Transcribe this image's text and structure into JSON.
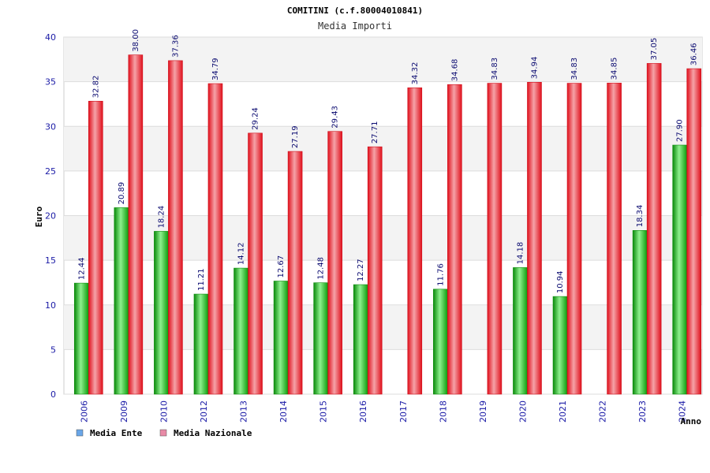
{
  "chart_data": {
    "type": "bar",
    "title": "COMITINI (c.f.80004010841)",
    "subtitle": "Media Importi",
    "xlabel": "Anno",
    "ylabel": "Euro",
    "ylim": [
      0,
      40
    ],
    "yticks": [
      "0",
      "5",
      "10",
      "15",
      "20",
      "25",
      "30",
      "35",
      "40"
    ],
    "grid": true,
    "legend_position": "bottom-left",
    "categories": [
      "2006",
      "2009",
      "2010",
      "2012",
      "2013",
      "2014",
      "2015",
      "2016",
      "2017",
      "2018",
      "2019",
      "2020",
      "2021",
      "2022",
      "2023",
      "2024"
    ],
    "series": [
      {
        "name": "Media Ente",
        "color": "#11b011",
        "legend_color": "#6aa6e8",
        "values": [
          12.44,
          20.89,
          18.24,
          11.21,
          14.12,
          12.67,
          12.48,
          12.27,
          null,
          11.76,
          null,
          14.18,
          10.94,
          null,
          18.34,
          27.9
        ],
        "labels": [
          "12.44",
          "20.89",
          "18.24",
          "11.21",
          "14.12",
          "12.67",
          "12.48",
          "12.27",
          "",
          "11.76",
          "",
          "14.18",
          "10.94",
          "",
          "18.34",
          "27.90"
        ]
      },
      {
        "name": "Media Nazionale",
        "color": "#e8101c",
        "legend_color": "#e88aa6",
        "values": [
          32.82,
          38.0,
          37.36,
          34.79,
          29.24,
          27.19,
          29.43,
          27.71,
          34.32,
          34.68,
          34.83,
          34.94,
          34.83,
          34.85,
          37.05,
          36.46
        ],
        "labels": [
          "32.82",
          "38.00",
          "37.36",
          "34.79",
          "29.24",
          "27.19",
          "29.43",
          "27.71",
          "34.32",
          "34.68",
          "34.83",
          "34.94",
          "34.83",
          "34.85",
          "37.05",
          "36.46"
        ]
      }
    ]
  }
}
